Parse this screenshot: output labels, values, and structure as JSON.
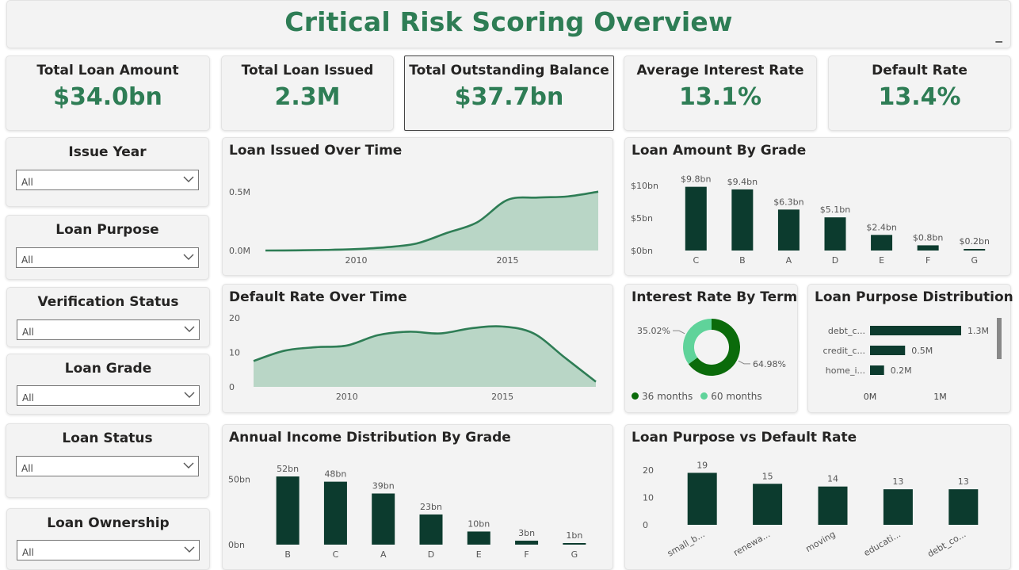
{
  "title": "Critical Risk Scoring Overview",
  "colors": {
    "accent": "#2e7d55",
    "bar": "#0c3b2e",
    "area": "#b9d6c6",
    "line": "#2e7d55",
    "donut_a": "#0b6b0b",
    "donut_b": "#5fd39a"
  },
  "kpis": [
    {
      "label": "Total Loan Amount",
      "value": "$34.0bn"
    },
    {
      "label": "Total Loan Issued",
      "value": "2.3M"
    },
    {
      "label": "Total Outstanding Balance",
      "value": "$37.7bn"
    },
    {
      "label": "Average Interest Rate",
      "value": "13.1%"
    },
    {
      "label": "Default Rate",
      "value": "13.4%"
    }
  ],
  "slicers": [
    {
      "label": "Issue Year",
      "value": "All"
    },
    {
      "label": "Loan Purpose",
      "value": "All"
    },
    {
      "label": "Verification Status",
      "value": "All"
    },
    {
      "label": "Loan Grade",
      "value": "All"
    },
    {
      "label": "Loan Status",
      "value": "All"
    },
    {
      "label": "Loan Ownership",
      "value": "All"
    }
  ],
  "chart_data": [
    {
      "id": "loan_issued",
      "type": "area",
      "title": "Loan Issued Over Time",
      "x": [
        2007,
        2008,
        2009,
        2010,
        2011,
        2012,
        2013,
        2014,
        2015,
        2016,
        2017,
        2018
      ],
      "values": [
        0.0,
        0.001,
        0.005,
        0.012,
        0.028,
        0.06,
        0.15,
        0.24,
        0.43,
        0.45,
        0.46,
        0.5
      ],
      "xticks": [
        2010,
        2015
      ],
      "yticks": [
        {
          "v": 0,
          "label": "0.0M"
        },
        {
          "v": 0.5,
          "label": "0.5M"
        }
      ],
      "ylim": [
        0,
        0.62
      ]
    },
    {
      "id": "default_rate",
      "type": "area",
      "title": "Default Rate Over Time",
      "x": [
        2007,
        2008,
        2009,
        2010,
        2011,
        2012,
        2013,
        2014,
        2015,
        2016,
        2017,
        2018
      ],
      "values": [
        7.5,
        10.5,
        11.5,
        12.0,
        15.0,
        16.0,
        15.5,
        17.0,
        17.5,
        15.5,
        8.5,
        1.5
      ],
      "xticks": [
        2010,
        2015
      ],
      "yticks": [
        {
          "v": 0,
          "label": "0"
        },
        {
          "v": 10,
          "label": "10"
        },
        {
          "v": 20,
          "label": "20"
        }
      ],
      "ylim": [
        0,
        20
      ]
    },
    {
      "id": "amount_by_grade",
      "type": "bar",
      "title": "Loan Amount By Grade",
      "categories": [
        "C",
        "B",
        "A",
        "D",
        "E",
        "F",
        "G"
      ],
      "values": [
        9.8,
        9.4,
        6.3,
        5.1,
        2.4,
        0.8,
        0.2
      ],
      "labels": [
        "$9.8bn",
        "$9.4bn",
        "$6.3bn",
        "$5.1bn",
        "$2.4bn",
        "$0.8bn",
        "$0.2bn"
      ],
      "yticks": [
        {
          "v": 0,
          "label": "$0bn"
        },
        {
          "v": 5,
          "label": "$5bn"
        },
        {
          "v": 10,
          "label": "$10bn"
        }
      ],
      "ylim": [
        0,
        10
      ]
    },
    {
      "id": "interest_by_term",
      "type": "pie",
      "title": "Interest Rate By Term",
      "categories": [
        "36 months",
        "60 months"
      ],
      "values": [
        64.98,
        35.02
      ],
      "labels": [
        "64.98%",
        "35.02%"
      ]
    },
    {
      "id": "purpose_distribution",
      "type": "bar",
      "orientation": "horizontal",
      "title": "Loan Purpose Distribution",
      "categories": [
        "debt_c...",
        "credit_c...",
        "home_i..."
      ],
      "values": [
        1.3,
        0.5,
        0.2
      ],
      "labels": [
        "1.3M",
        "0.5M",
        "0.2M"
      ],
      "xticks": [
        {
          "v": 0,
          "label": "0M"
        },
        {
          "v": 1,
          "label": "1M"
        }
      ],
      "xlim": [
        0,
        1.3
      ]
    },
    {
      "id": "income_by_grade",
      "type": "bar",
      "title": "Annual Income Distribution By Grade",
      "categories": [
        "B",
        "C",
        "A",
        "D",
        "E",
        "F",
        "G"
      ],
      "values": [
        52,
        48,
        39,
        23,
        10,
        3,
        1
      ],
      "labels": [
        "52bn",
        "48bn",
        "39bn",
        "23bn",
        "10bn",
        "3bn",
        "1bn"
      ],
      "yticks": [
        {
          "v": 0,
          "label": "0bn"
        },
        {
          "v": 50,
          "label": "50bn"
        }
      ],
      "ylim": [
        0,
        52
      ]
    },
    {
      "id": "purpose_vs_default",
      "type": "bar",
      "title": "Loan Purpose vs Default Rate",
      "categories": [
        "small_b...",
        "renewa...",
        "moving",
        "educati...",
        "debt_co..."
      ],
      "values": [
        19,
        15,
        14,
        13,
        13
      ],
      "labels": [
        "19",
        "15",
        "14",
        "13",
        "13"
      ],
      "yticks": [
        {
          "v": 0,
          "label": "0"
        },
        {
          "v": 10,
          "label": "10"
        },
        {
          "v": 20,
          "label": "20"
        }
      ],
      "ylim": [
        0,
        20
      ]
    }
  ]
}
